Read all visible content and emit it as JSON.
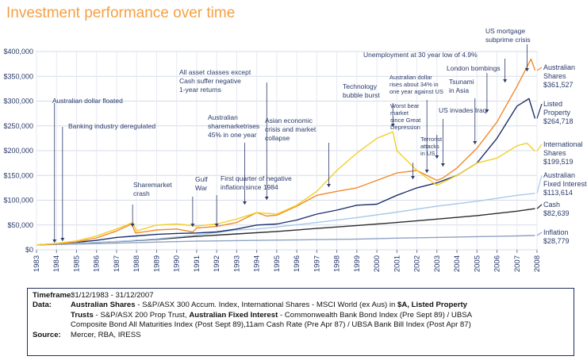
{
  "chart_data": {
    "type": "line",
    "title": "Investment performance over time",
    "ylim": [
      0,
      400000
    ],
    "yticks": [
      "$0",
      "$50,000",
      "$100,000",
      "$150,000",
      "$200,000",
      "$250,000",
      "$300,000",
      "$350,000",
      "$400,000"
    ],
    "xlim": [
      1983,
      2008
    ],
    "xticks": [
      "1983",
      "1984",
      "1985",
      "1986",
      "1987",
      "1988",
      "1989",
      "1990",
      "1991",
      "1992",
      "1993",
      "1994",
      "1995",
      "1996",
      "1997",
      "1998",
      "1999",
      "2000",
      "2001",
      "2002",
      "2003",
      "2004",
      "2005",
      "2006",
      "2007",
      "2008"
    ],
    "grid": true,
    "legend_position": "right",
    "series": [
      {
        "key": "aus_shares",
        "name": "Australian Shares",
        "value_label": "$361,527",
        "color": "#f08a2c",
        "x": [
          1983,
          1984,
          1985,
          1986,
          1987,
          1987.75,
          1987.95,
          1988.5,
          1989,
          1990,
          1990.8,
          1991,
          1992,
          1993,
          1994,
          1994.5,
          1995,
          1996,
          1997,
          1998,
          1999,
          2000,
          2001,
          2002,
          2002.5,
          2003,
          2003.3,
          2004,
          2005,
          2006,
          2007,
          2007.7,
          2007.9
        ],
        "y": [
          10000,
          12000,
          16000,
          24000,
          38000,
          52000,
          34000,
          37000,
          40000,
          42000,
          36000,
          44000,
          47000,
          55000,
          75000,
          68000,
          70000,
          88000,
          110000,
          118000,
          125000,
          140000,
          155000,
          160000,
          150000,
          140000,
          145000,
          165000,
          205000,
          258000,
          330000,
          385000,
          362000
        ]
      },
      {
        "key": "listed_property",
        "name": "Listed Property",
        "value_label": "$264,718",
        "color": "#1f2f6a",
        "x": [
          1983,
          1984,
          1985,
          1986,
          1987,
          1988,
          1989,
          1990,
          1991,
          1992,
          1993,
          1994,
          1995,
          1996,
          1997,
          1998,
          1999,
          2000,
          2001,
          2002,
          2003,
          2004,
          2005,
          2006,
          2007,
          2007.6,
          2007.9
        ],
        "y": [
          10000,
          12000,
          15000,
          19000,
          25000,
          28000,
          31000,
          33000,
          34000,
          36000,
          42000,
          50000,
          52000,
          60000,
          72000,
          80000,
          90000,
          92000,
          110000,
          125000,
          135000,
          150000,
          175000,
          225000,
          290000,
          305000,
          265000
        ]
      },
      {
        "key": "intl_shares",
        "name": "International Shares",
        "value_label": "$199,519",
        "color": "#f2d028",
        "x": [
          1983,
          1984,
          1985,
          1986,
          1987,
          1987.8,
          1988,
          1989,
          1990,
          1991,
          1992,
          1993,
          1994,
          1995,
          1996,
          1997,
          1998,
          1999,
          2000,
          2000.8,
          2001,
          2002,
          2003,
          2004,
          2005,
          2006,
          2007,
          2007.5,
          2007.9
        ],
        "y": [
          10000,
          13000,
          18000,
          28000,
          42000,
          55000,
          38000,
          50000,
          52000,
          48000,
          52000,
          62000,
          75000,
          72000,
          90000,
          118000,
          160000,
          195000,
          225000,
          238000,
          200000,
          160000,
          130000,
          150000,
          175000,
          185000,
          210000,
          215000,
          199000
        ]
      },
      {
        "key": "aus_fixed",
        "name": "Australian Fixed Interest",
        "value_label": "$113,614",
        "color": "#a9c9e8",
        "x": [
          1983,
          1985,
          1987,
          1989,
          1991,
          1993,
          1994,
          1995,
          1997,
          1999,
          2001,
          2003,
          2005,
          2007,
          2007.9
        ],
        "y": [
          10000,
          13000,
          17000,
          22000,
          30000,
          40000,
          42000,
          46000,
          55000,
          65000,
          76000,
          88000,
          98000,
          110000,
          114000
        ]
      },
      {
        "key": "cash",
        "name": "Cash",
        "value_label": "$82,639",
        "color": "#2b2b2b",
        "x": [
          1983,
          1985,
          1987,
          1989,
          1991,
          1993,
          1995,
          1997,
          1999,
          2001,
          2003,
          2005,
          2007,
          2007.9
        ],
        "y": [
          10000,
          13000,
          16500,
          21000,
          27000,
          32000,
          37000,
          43000,
          49000,
          55000,
          62000,
          69000,
          78000,
          83000
        ]
      },
      {
        "key": "inflation",
        "name": "Inflation",
        "value_label": "$28,779",
        "color": "#8fa1c4",
        "x": [
          1983,
          1985,
          1987,
          1989,
          1991,
          1993,
          1995,
          1997,
          1999,
          2001,
          2003,
          2005,
          2007,
          2007.9
        ],
        "y": [
          10000,
          11500,
          13500,
          15500,
          17500,
          18500,
          19500,
          20500,
          21500,
          23500,
          25000,
          26500,
          28000,
          28800
        ]
      }
    ],
    "annotations": [
      {
        "lines": [
          "Australian dollar floated"
        ],
        "x": 1983.9
      },
      {
        "lines": [
          "Banking industry deregulated"
        ],
        "x": 1984.3
      },
      {
        "lines": [
          "Sharemarket",
          "crash"
        ],
        "x": 1987.8
      },
      {
        "lines": [
          "Gulf",
          "War"
        ],
        "x": 1990.8
      },
      {
        "lines": [
          "First quarter of negative",
          "inflation since 1984"
        ],
        "x": 1992.0
      },
      {
        "lines": [
          "Australian",
          "sharemarketrises",
          "45% in one year"
        ],
        "x": 1993.4
      },
      {
        "lines": [
          "All asset classes except",
          "Cash suffer negative",
          "1-year returns"
        ],
        "x": 1994.5
      },
      {
        "lines": [
          "Asian economic",
          "crisis and market",
          "collapse"
        ],
        "x": 1997.6
      },
      {
        "lines": [
          "Technology",
          "bubble burst"
        ],
        "x": 2000.8
      },
      {
        "lines": [
          "Australian dollar",
          "rises about 34% in",
          "one year against US"
        ],
        "x": 2002.5
      },
      {
        "lines": [
          "Worst bear",
          "market",
          "since Great",
          "Depression"
        ],
        "x": 2003.0
      },
      {
        "lines": [
          "Terrorist",
          "attacks",
          "in US"
        ],
        "x": 2001.8
      },
      {
        "lines": [
          "US invades Iraq"
        ],
        "x": 2003.3
      },
      {
        "lines": [
          "Tsunami",
          "in Asia"
        ],
        "x": 2004.9
      },
      {
        "lines": [
          "London bombings"
        ],
        "x": 2005.5
      },
      {
        "lines": [
          "Unemployment at 30 year low of 4.9%"
        ],
        "x": 2006.4
      },
      {
        "lines": [
          "US mortgage",
          "subprime crisis"
        ],
        "x": 2007.5
      }
    ]
  },
  "footer": {
    "timeframe_label": "Timeframe:",
    "timeframe_value": "31/12/1983 - 31/12/2007",
    "data_label": "Data:",
    "data_b1": "Australian Shares",
    "data_t1": " - S&P/ASX 300 Accum. Index, International Shares - MSCI World (ex Aus) in ",
    "data_b2": "$A, Listed Property",
    "data_b3": "Trusts",
    "data_t2": " - S&P/ASX 200 Prop Trust, ",
    "data_b4": "Australian Fixed Interest",
    "data_t3": " - Commonwealth Bank Bond Index (Pre Sept 89) / UBSA",
    "data_t4": "Composite Bond All Maturities Index (Post Sept 89),11am Cash Rate (Pre Apr 87) / UBSA Bank Bill Index (Post Apr 87)",
    "source_label": "Source:",
    "source_value": "Mercer, RBA, IRESS"
  }
}
